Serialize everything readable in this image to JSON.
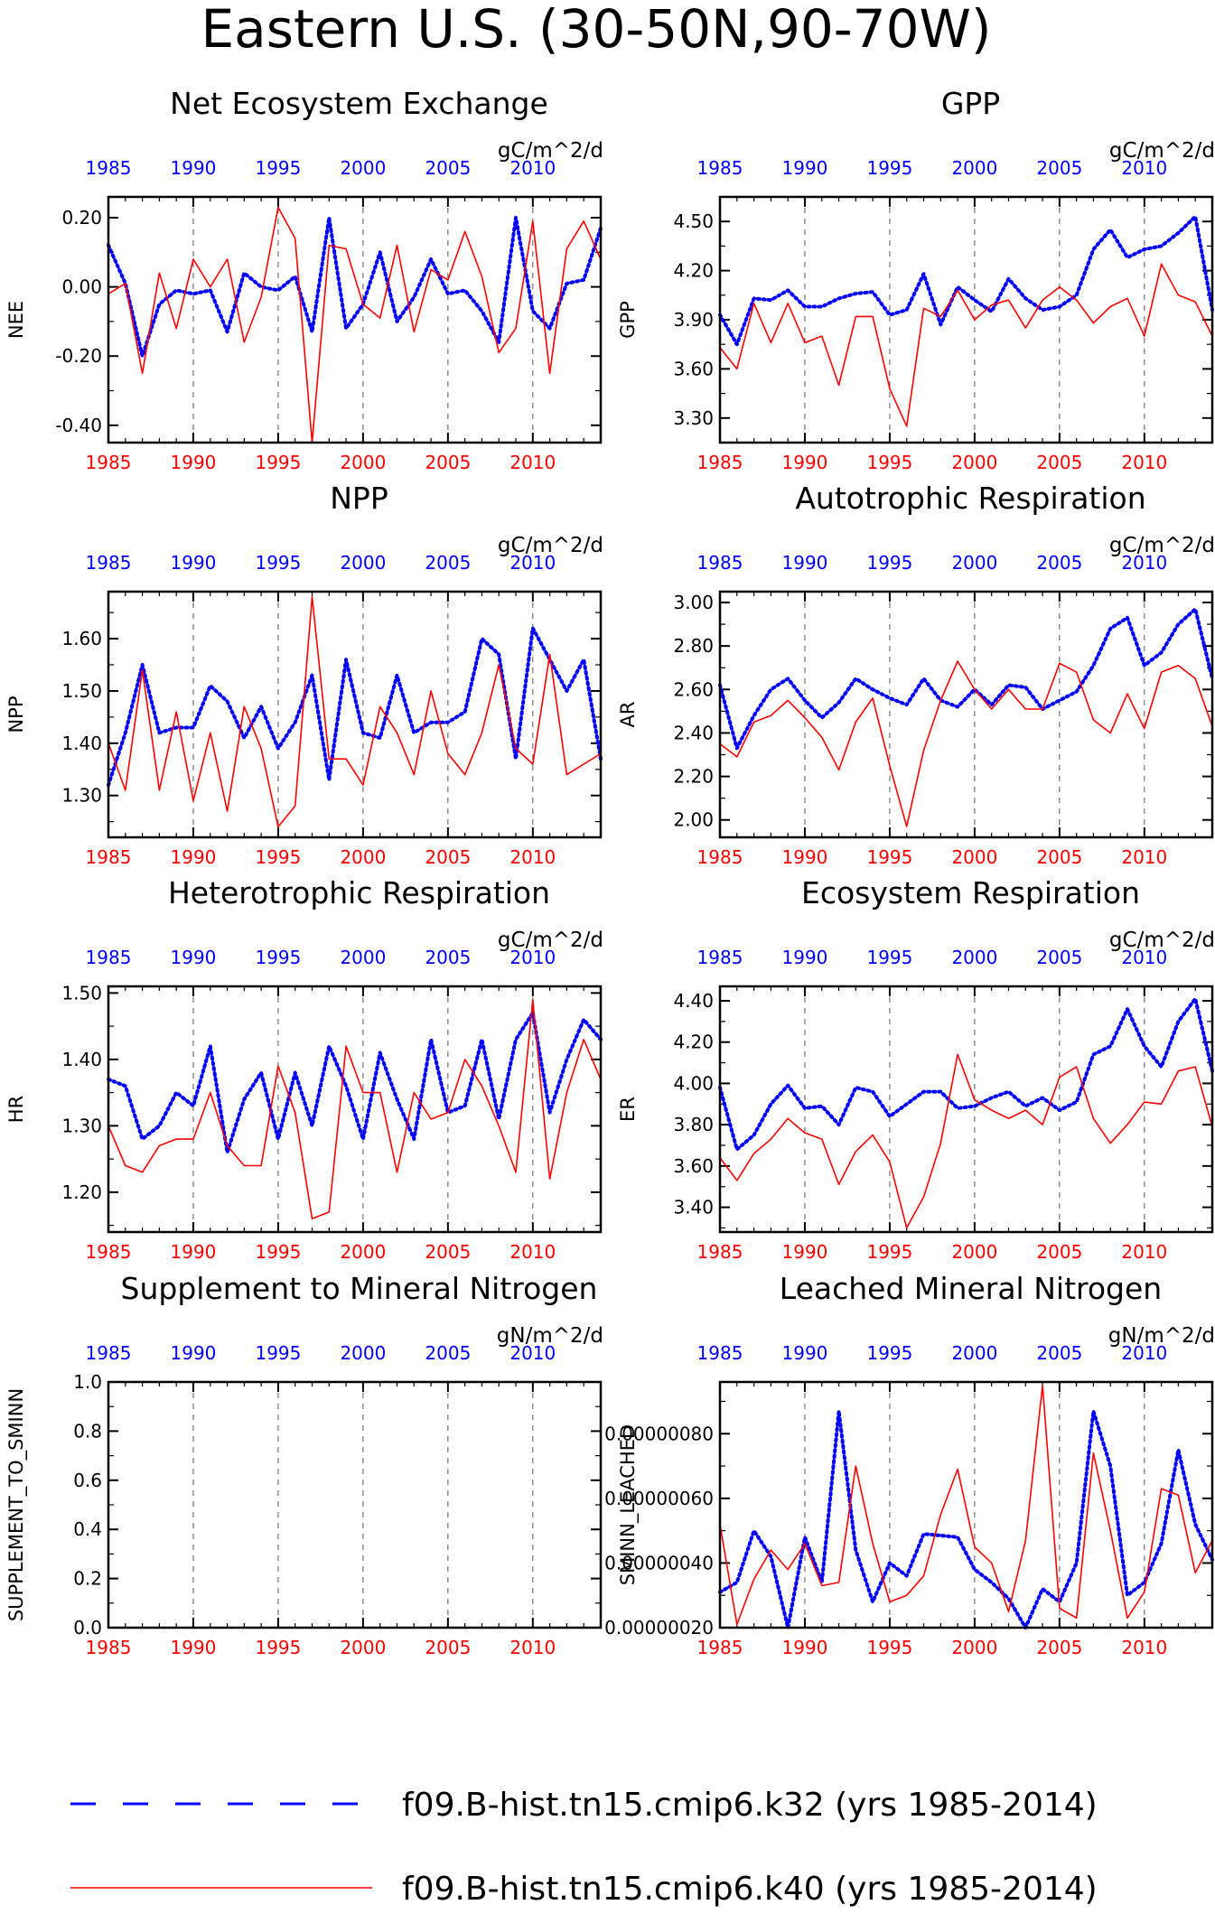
{
  "title": "Eastern U.S. (30-50N,90-70W)",
  "colors": {
    "k32": "#0000ff",
    "k40": "#ff0000",
    "axis": "#000000",
    "grid": "#555555"
  },
  "legend": [
    {
      "label": "f09.B-hist.tn15.cmip6.k32 (yrs 1985-2014)",
      "color": "#0000ff",
      "style": "dashed"
    },
    {
      "label": "f09.B-hist.tn15.cmip6.k40 (yrs 1985-2014)",
      "color": "#ff0000",
      "style": "solid"
    }
  ],
  "chart_data": [
    {
      "type": "line",
      "title": "Net Ecosystem Exchange",
      "units": "gC/m^2/d",
      "ylabel": "NEE",
      "xlim": [
        1985,
        2014
      ],
      "ylim": [
        -0.45,
        0.26
      ],
      "yticks": [
        0.2,
        0.0,
        -0.2,
        -0.4
      ],
      "ytick_labels": [
        "0.20",
        "0.00",
        "-0.20",
        "-0.40"
      ],
      "xticks": [
        1985,
        1990,
        1995,
        2000,
        2005,
        2010
      ],
      "series": [
        {
          "values": [
            0.12,
            0.01,
            -0.2,
            -0.05,
            -0.01,
            -0.02,
            -0.01,
            -0.13,
            0.04,
            0.0,
            -0.01,
            0.03,
            -0.13,
            0.2,
            -0.12,
            -0.05,
            0.1,
            -0.1,
            -0.03,
            0.08,
            -0.02,
            -0.01,
            -0.07,
            -0.16,
            0.2,
            -0.07,
            -0.12,
            0.01,
            0.02,
            0.17
          ]
        },
        {
          "values": [
            -0.02,
            0.01,
            -0.25,
            0.04,
            -0.12,
            0.08,
            0.0,
            0.08,
            -0.16,
            -0.03,
            0.23,
            0.14,
            -0.45,
            0.12,
            0.11,
            -0.05,
            -0.09,
            0.12,
            -0.13,
            0.05,
            0.02,
            0.16,
            0.03,
            -0.19,
            -0.12,
            0.19,
            -0.25,
            0.11,
            0.19,
            0.08
          ]
        }
      ]
    },
    {
      "type": "line",
      "title": "GPP",
      "units": "gC/m^2/d",
      "ylabel": "GPP",
      "xlim": [
        1985,
        2014
      ],
      "ylim": [
        3.15,
        4.65
      ],
      "yticks": [
        4.5,
        4.2,
        3.9,
        3.6,
        3.3
      ],
      "ytick_labels": [
        "4.50",
        "4.20",
        "3.90",
        "3.60",
        "3.30"
      ],
      "xticks": [
        1985,
        1990,
        1995,
        2000,
        2005,
        2010
      ],
      "series": [
        {
          "values": [
            3.93,
            3.75,
            4.03,
            4.02,
            4.08,
            3.98,
            3.98,
            4.03,
            4.06,
            4.07,
            3.93,
            3.96,
            4.18,
            3.87,
            4.1,
            4.02,
            3.95,
            4.15,
            4.03,
            3.96,
            3.98,
            4.05,
            4.33,
            4.45,
            4.28,
            4.33,
            4.35,
            4.43,
            4.53,
            3.96
          ]
        },
        {
          "values": [
            3.73,
            3.6,
            4.0,
            3.76,
            4.0,
            3.76,
            3.8,
            3.5,
            3.92,
            3.92,
            3.48,
            3.25,
            3.97,
            3.92,
            4.08,
            3.9,
            3.99,
            4.02,
            3.85,
            4.02,
            4.1,
            4.02,
            3.88,
            3.98,
            4.03,
            3.8,
            4.24,
            4.05,
            4.01,
            3.8
          ]
        }
      ]
    },
    {
      "type": "line",
      "title": "NPP",
      "units": "gC/m^2/d",
      "ylabel": "NPP",
      "xlim": [
        1985,
        2014
      ],
      "ylim": [
        1.22,
        1.69
      ],
      "yticks": [
        1.6,
        1.5,
        1.4,
        1.3
      ],
      "ytick_labels": [
        "1.60",
        "1.50",
        "1.40",
        "1.30"
      ],
      "xticks": [
        1985,
        1990,
        1995,
        2000,
        2005,
        2010
      ],
      "series": [
        {
          "values": [
            1.32,
            1.42,
            1.55,
            1.42,
            1.43,
            1.43,
            1.51,
            1.48,
            1.41,
            1.47,
            1.39,
            1.44,
            1.53,
            1.33,
            1.56,
            1.42,
            1.41,
            1.53,
            1.42,
            1.44,
            1.44,
            1.46,
            1.6,
            1.57,
            1.37,
            1.62,
            1.56,
            1.5,
            1.56,
            1.37
          ]
        },
        {
          "values": [
            1.4,
            1.31,
            1.54,
            1.31,
            1.46,
            1.29,
            1.42,
            1.27,
            1.47,
            1.39,
            1.24,
            1.28,
            1.68,
            1.37,
            1.37,
            1.32,
            1.47,
            1.42,
            1.34,
            1.5,
            1.38,
            1.34,
            1.42,
            1.55,
            1.39,
            1.36,
            1.57,
            1.34,
            1.36,
            1.38
          ]
        }
      ]
    },
    {
      "type": "line",
      "title": "Autotrophic Respiration",
      "units": "gC/m^2/d",
      "ylabel": "AR",
      "xlim": [
        1985,
        2014
      ],
      "ylim": [
        1.92,
        3.05
      ],
      "yticks": [
        3.0,
        2.8,
        2.6,
        2.4,
        2.2,
        2.0
      ],
      "ytick_labels": [
        "3.00",
        "2.80",
        "2.60",
        "2.40",
        "2.20",
        "2.00"
      ],
      "xticks": [
        1985,
        1990,
        1995,
        2000,
        2005,
        2010
      ],
      "series": [
        {
          "values": [
            2.62,
            2.33,
            2.48,
            2.6,
            2.65,
            2.55,
            2.47,
            2.54,
            2.65,
            2.6,
            2.56,
            2.53,
            2.65,
            2.55,
            2.52,
            2.6,
            2.53,
            2.62,
            2.61,
            2.51,
            2.55,
            2.59,
            2.71,
            2.88,
            2.93,
            2.71,
            2.77,
            2.9,
            2.97,
            2.65
          ]
        },
        {
          "values": [
            2.35,
            2.29,
            2.45,
            2.48,
            2.55,
            2.47,
            2.38,
            2.23,
            2.45,
            2.56,
            2.25,
            1.97,
            2.32,
            2.55,
            2.73,
            2.6,
            2.51,
            2.6,
            2.51,
            2.51,
            2.72,
            2.68,
            2.46,
            2.4,
            2.58,
            2.42,
            2.68,
            2.71,
            2.65,
            2.43
          ]
        }
      ]
    },
    {
      "type": "line",
      "title": "Heterotrophic Respiration",
      "units": "gC/m^2/d",
      "ylabel": "HR",
      "xlim": [
        1985,
        2014
      ],
      "ylim": [
        1.14,
        1.51
      ],
      "yticks": [
        1.5,
        1.4,
        1.3,
        1.2
      ],
      "ytick_labels": [
        "1.50",
        "1.40",
        "1.30",
        "1.20"
      ],
      "xticks": [
        1985,
        1990,
        1995,
        2000,
        2005,
        2010
      ],
      "series": [
        {
          "values": [
            1.37,
            1.36,
            1.28,
            1.3,
            1.35,
            1.33,
            1.42,
            1.26,
            1.34,
            1.38,
            1.28,
            1.38,
            1.3,
            1.42,
            1.36,
            1.28,
            1.41,
            1.34,
            1.28,
            1.43,
            1.32,
            1.33,
            1.43,
            1.31,
            1.43,
            1.47,
            1.32,
            1.4,
            1.46,
            1.43
          ]
        },
        {
          "values": [
            1.3,
            1.24,
            1.23,
            1.27,
            1.28,
            1.28,
            1.35,
            1.27,
            1.24,
            1.24,
            1.39,
            1.32,
            1.16,
            1.17,
            1.42,
            1.35,
            1.35,
            1.23,
            1.35,
            1.31,
            1.32,
            1.4,
            1.36,
            1.3,
            1.23,
            1.49,
            1.22,
            1.35,
            1.43,
            1.37
          ]
        }
      ]
    },
    {
      "type": "line",
      "title": "Ecosystem Respiration",
      "units": "gC/m^2/d",
      "ylabel": "ER",
      "xlim": [
        1985,
        2014
      ],
      "ylim": [
        3.28,
        4.47
      ],
      "yticks": [
        4.4,
        4.2,
        4.0,
        3.8,
        3.6,
        3.4
      ],
      "ytick_labels": [
        "4.40",
        "4.20",
        "4.00",
        "3.80",
        "3.60",
        "3.40"
      ],
      "xticks": [
        1985,
        1990,
        1995,
        2000,
        2005,
        2010
      ],
      "series": [
        {
          "values": [
            3.98,
            3.68,
            3.75,
            3.9,
            3.99,
            3.88,
            3.89,
            3.8,
            3.98,
            3.96,
            3.84,
            3.9,
            3.96,
            3.96,
            3.88,
            3.89,
            3.93,
            3.96,
            3.89,
            3.93,
            3.87,
            3.91,
            4.14,
            4.18,
            4.36,
            4.18,
            4.08,
            4.3,
            4.41,
            4.06
          ]
        },
        {
          "values": [
            3.64,
            3.53,
            3.66,
            3.73,
            3.83,
            3.76,
            3.73,
            3.51,
            3.67,
            3.75,
            3.62,
            3.3,
            3.45,
            3.71,
            4.14,
            3.92,
            3.87,
            3.83,
            3.87,
            3.8,
            4.03,
            4.08,
            3.83,
            3.71,
            3.8,
            3.91,
            3.9,
            4.06,
            4.08,
            3.79
          ]
        }
      ]
    },
    {
      "type": "line",
      "title": "Supplement to Mineral Nitrogen",
      "units": "gN/m^2/d",
      "ylabel": "SUPPLEMENT_TO_SMINN",
      "xlim": [
        1985,
        2014
      ],
      "ylim": [
        0.0,
        1.0
      ],
      "yticks": [
        1.0,
        0.8,
        0.6,
        0.4,
        0.2,
        0.0
      ],
      "ytick_labels": [
        "1.0",
        "0.8",
        "0.6",
        "0.4",
        "0.2",
        "0.0"
      ],
      "xticks": [
        1985,
        1990,
        1995,
        2000,
        2005,
        2010
      ],
      "series": []
    },
    {
      "type": "line",
      "title": "Leached Mineral Nitrogen",
      "units": "gN/m^2/d",
      "ylabel": "SMINN_LEACHED",
      "xlim": [
        1985,
        2014
      ],
      "ylim": [
        2e-07,
        9.6e-07
      ],
      "yticks": [
        8e-07,
        6e-07,
        4e-07,
        2e-07
      ],
      "ytick_labels": [
        "0.00000080",
        "0.00000060",
        "0.00000040",
        "0.00000020"
      ],
      "xticks": [
        1985,
        1990,
        1995,
        2000,
        2005,
        2010
      ],
      "series": [
        {
          "values": [
            3.1e-07,
            3.4e-07,
            5e-07,
            4.2e-07,
            2e-07,
            4.8e-07,
            3.4e-07,
            8.7e-07,
            4.4e-07,
            2.8e-07,
            4e-07,
            3.6e-07,
            4.9e-07,
            4.85e-07,
            4.8e-07,
            3.8e-07,
            3.4e-07,
            2.9e-07,
            2e-07,
            3.2e-07,
            2.8e-07,
            4e-07,
            8.7e-07,
            7e-07,
            3e-07,
            3.4e-07,
            4.6e-07,
            7.5e-07,
            5.2e-07,
            4.1e-07
          ]
        },
        {
          "values": [
            5.2e-07,
            2.1e-07,
            3.5e-07,
            4.4e-07,
            3.8e-07,
            4.6e-07,
            3.3e-07,
            3.4e-07,
            7e-07,
            4.6e-07,
            2.8e-07,
            3e-07,
            3.6e-07,
            5.5e-07,
            6.9e-07,
            4.5e-07,
            4e-07,
            2.5e-07,
            4.7e-07,
            9.5e-07,
            2.6e-07,
            2.3e-07,
            7.4e-07,
            5e-07,
            2.3e-07,
            3.1e-07,
            6.3e-07,
            6.1e-07,
            3.7e-07,
            4.7e-07
          ]
        }
      ]
    }
  ]
}
